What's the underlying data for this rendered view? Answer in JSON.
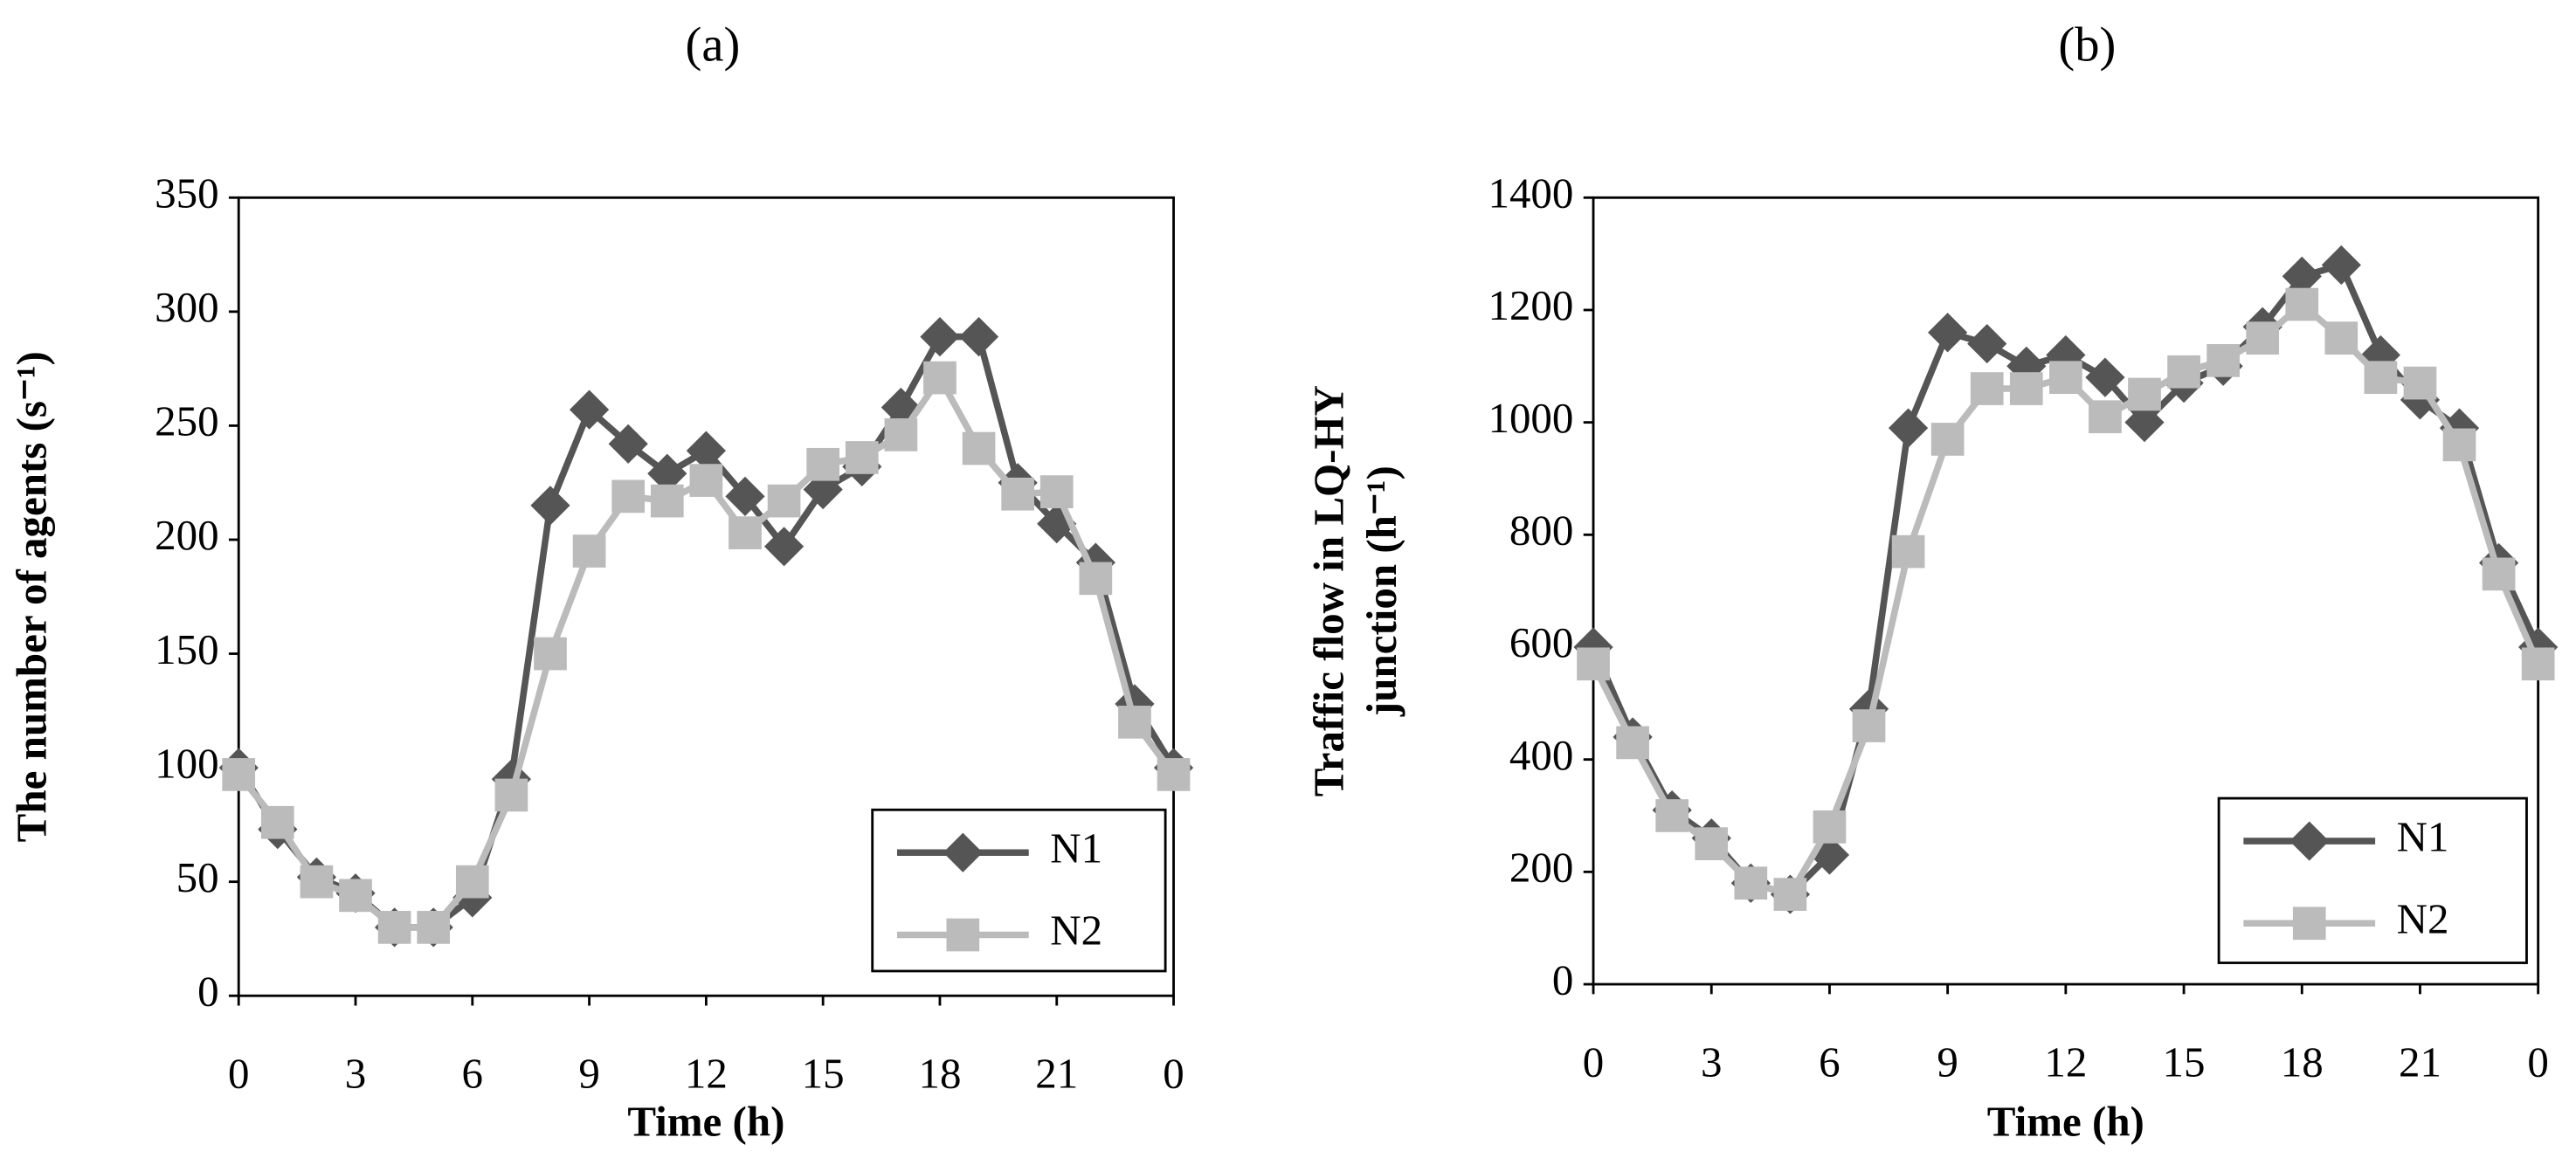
{
  "chart_data": [
    {
      "type": "line",
      "title": "(a)",
      "x_label": "Time (h)",
      "y_label": "The number of agents (s⁻¹)",
      "x": [
        0,
        1,
        2,
        3,
        4,
        5,
        6,
        7,
        8,
        9,
        10,
        11,
        12,
        13,
        14,
        15,
        16,
        17,
        18,
        19,
        20,
        21,
        22,
        23,
        24
      ],
      "xlim": [
        0,
        24
      ],
      "xticks": [
        0,
        3,
        6,
        9,
        12,
        15,
        18,
        21,
        {
          "value": 24,
          "label": "0"
        }
      ],
      "ylim": [
        0,
        350
      ],
      "yticks": [
        0,
        50,
        100,
        150,
        200,
        250,
        300,
        350
      ],
      "legend": "lower right",
      "grid": false,
      "series": [
        {
          "name": "N1",
          "color": "#555555",
          "marker": "diamond",
          "values": [
            100,
            73,
            52,
            45,
            30,
            30,
            43,
            95,
            215,
            257,
            242,
            229,
            239,
            219,
            197,
            222,
            232,
            258,
            289,
            289,
            225,
            207,
            190,
            128,
            100
          ]
        },
        {
          "name": "N2",
          "color": "#bbbbbb",
          "marker": "square",
          "values": [
            97,
            76,
            50,
            44,
            30,
            30,
            50,
            88,
            150,
            195,
            219,
            217,
            226,
            203,
            217,
            233,
            236,
            246,
            271,
            240,
            220,
            221,
            183,
            120,
            97
          ]
        }
      ]
    },
    {
      "type": "line",
      "title": "(b)",
      "x_label": "Time (h)",
      "y_label": [
        "Traffic flow in LQ-HY",
        "junction (h⁻¹)"
      ],
      "x": [
        0,
        1,
        2,
        3,
        4,
        5,
        6,
        7,
        8,
        9,
        10,
        11,
        12,
        13,
        14,
        15,
        16,
        17,
        18,
        19,
        20,
        21,
        22,
        23,
        24
      ],
      "xlim": [
        0,
        24
      ],
      "xticks": [
        0,
        3,
        6,
        9,
        12,
        15,
        18,
        21,
        {
          "value": 24,
          "label": "0"
        }
      ],
      "ylim": [
        0,
        1400
      ],
      "yticks": [
        0,
        200,
        400,
        600,
        800,
        1000,
        1200,
        1400
      ],
      "legend": "lower right",
      "grid": false,
      "series": [
        {
          "name": "N1",
          "color": "#555555",
          "marker": "diamond",
          "values": [
            600,
            440,
            310,
            260,
            180,
            160,
            230,
            490,
            990,
            1160,
            1140,
            1100,
            1120,
            1080,
            1000,
            1070,
            1100,
            1170,
            1260,
            1280,
            1120,
            1040,
            990,
            750,
            600
          ]
        },
        {
          "name": "N2",
          "color": "#bbbbbb",
          "marker": "square",
          "values": [
            570,
            430,
            300,
            250,
            180,
            160,
            280,
            460,
            770,
            970,
            1060,
            1060,
            1080,
            1010,
            1050,
            1090,
            1110,
            1150,
            1210,
            1150,
            1080,
            1070,
            960,
            730,
            570
          ]
        }
      ]
    }
  ]
}
